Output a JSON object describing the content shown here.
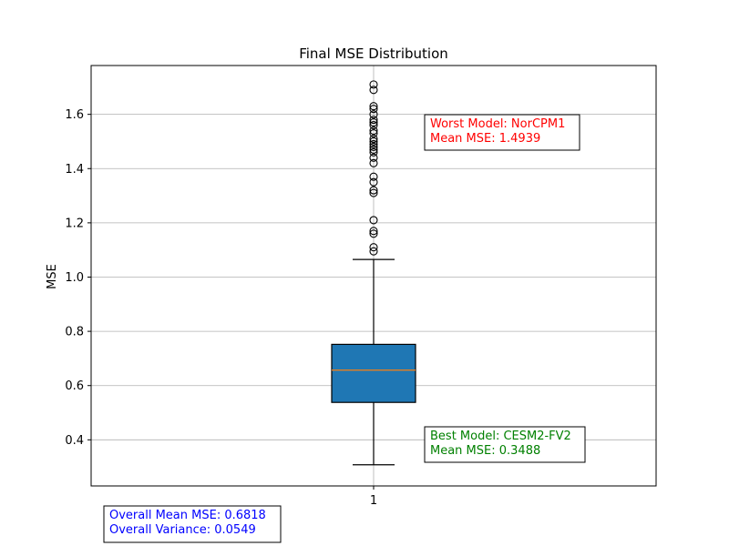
{
  "chart_data": {
    "type": "box",
    "title": "Final MSE Distribution",
    "xlabel": "",
    "ylabel": "MSE",
    "categories": [
      "1"
    ],
    "ylim": [
      0.23,
      1.78
    ],
    "y_ticks": [
      "0.4",
      "0.6",
      "0.8",
      "1.0",
      "1.2",
      "1.4",
      "1.6"
    ],
    "grid": true,
    "box": {
      "whisker_low": 0.308,
      "q1": 0.538,
      "median": 0.657,
      "q3": 0.752,
      "whisker_high": 1.065,
      "fliers": [
        1.095,
        1.11,
        1.16,
        1.17,
        1.21,
        1.31,
        1.32,
        1.35,
        1.37,
        1.42,
        1.44,
        1.46,
        1.47,
        1.48,
        1.49,
        1.5,
        1.51,
        1.53,
        1.54,
        1.56,
        1.57,
        1.58,
        1.6,
        1.62,
        1.63,
        1.69,
        1.71
      ]
    },
    "annotations": [
      {
        "id": "worst",
        "lines": [
          "Worst Model: NorCPM1",
          "Mean MSE: 1.4939"
        ],
        "color": "#ff0000"
      },
      {
        "id": "best",
        "lines": [
          "Best Model: CESM2-FV2",
          "Mean MSE: 0.3488"
        ],
        "color": "#008000"
      },
      {
        "id": "overall",
        "lines": [
          "Overall Mean MSE: 0.6818",
          "Overall Variance: 0.0549"
        ],
        "color": "#0000ff"
      }
    ],
    "colors": {
      "box_fill": "#1f77b4",
      "median": "#ff7f0e",
      "grid": "#b0b0b0"
    }
  }
}
